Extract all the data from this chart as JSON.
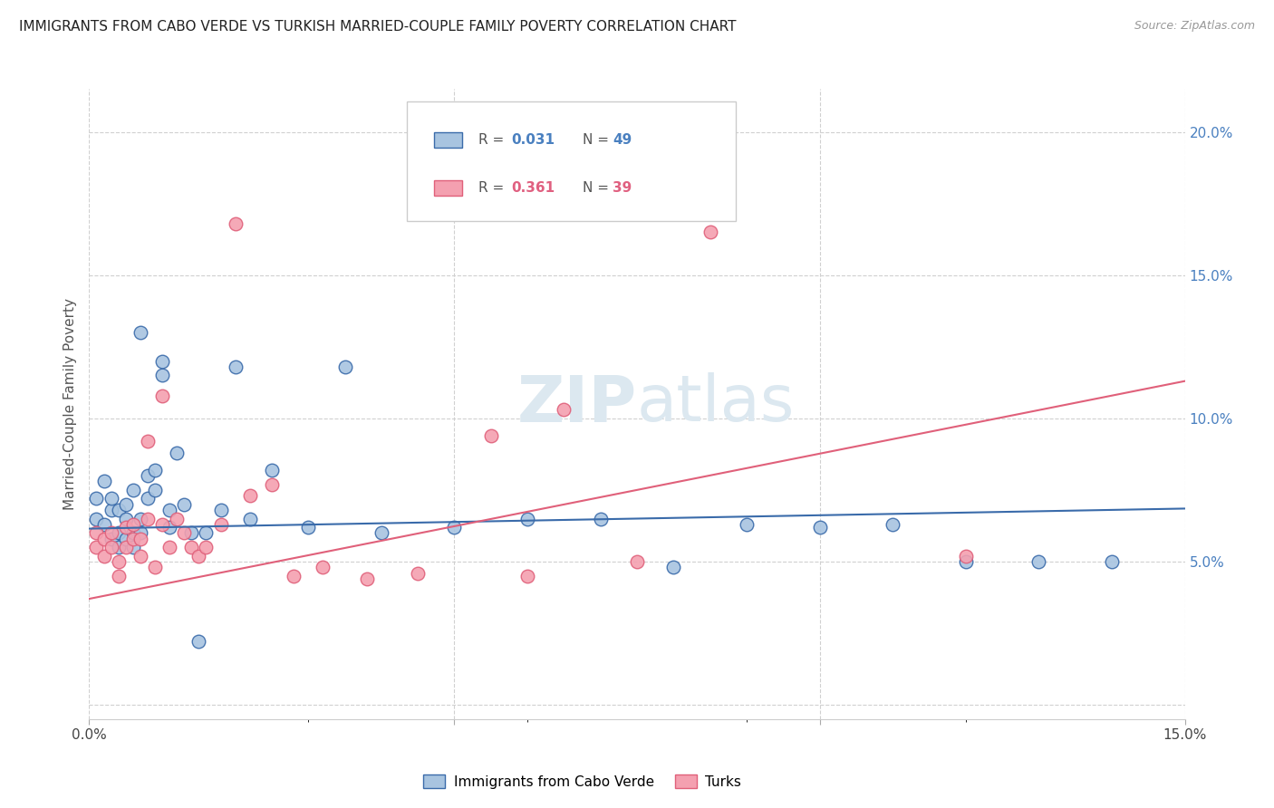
{
  "title": "IMMIGRANTS FROM CABO VERDE VS TURKISH MARRIED-COUPLE FAMILY POVERTY CORRELATION CHART",
  "source": "Source: ZipAtlas.com",
  "ylabel": "Married-Couple Family Poverty",
  "xlim": [
    0.0,
    0.15
  ],
  "ylim": [
    -0.005,
    0.215
  ],
  "color_blue": "#a8c4e0",
  "color_pink": "#f4a0b0",
  "line_color_blue": "#3a6baa",
  "line_color_pink": "#e0607a",
  "legend_text_color": "#555555",
  "legend_text_blue": "#4a80c0",
  "legend_text_pink": "#e06080",
  "right_axis_color": "#4a80c0",
  "cabo_verde_x": [
    0.001,
    0.001,
    0.002,
    0.002,
    0.003,
    0.003,
    0.003,
    0.004,
    0.004,
    0.004,
    0.005,
    0.005,
    0.005,
    0.006,
    0.006,
    0.006,
    0.007,
    0.007,
    0.007,
    0.008,
    0.008,
    0.009,
    0.009,
    0.01,
    0.01,
    0.011,
    0.011,
    0.012,
    0.013,
    0.014,
    0.015,
    0.016,
    0.018,
    0.02,
    0.022,
    0.025,
    0.03,
    0.035,
    0.04,
    0.05,
    0.06,
    0.07,
    0.08,
    0.09,
    0.1,
    0.11,
    0.12,
    0.13,
    0.14
  ],
  "cabo_verde_y": [
    0.065,
    0.072,
    0.078,
    0.063,
    0.068,
    0.058,
    0.072,
    0.06,
    0.055,
    0.068,
    0.07,
    0.065,
    0.058,
    0.075,
    0.06,
    0.055,
    0.13,
    0.065,
    0.06,
    0.08,
    0.072,
    0.082,
    0.075,
    0.115,
    0.12,
    0.068,
    0.062,
    0.088,
    0.07,
    0.06,
    0.022,
    0.06,
    0.068,
    0.118,
    0.065,
    0.082,
    0.062,
    0.118,
    0.06,
    0.062,
    0.065,
    0.065,
    0.048,
    0.063,
    0.062,
    0.063,
    0.05,
    0.05,
    0.05
  ],
  "turks_x": [
    0.001,
    0.001,
    0.002,
    0.002,
    0.003,
    0.003,
    0.004,
    0.004,
    0.005,
    0.005,
    0.006,
    0.006,
    0.007,
    0.007,
    0.008,
    0.008,
    0.009,
    0.01,
    0.01,
    0.011,
    0.012,
    0.013,
    0.014,
    0.015,
    0.016,
    0.018,
    0.02,
    0.022,
    0.025,
    0.028,
    0.032,
    0.038,
    0.045,
    0.055,
    0.06,
    0.065,
    0.075,
    0.085,
    0.12
  ],
  "turks_y": [
    0.06,
    0.055,
    0.058,
    0.052,
    0.06,
    0.055,
    0.05,
    0.045,
    0.062,
    0.055,
    0.063,
    0.058,
    0.058,
    0.052,
    0.092,
    0.065,
    0.048,
    0.108,
    0.063,
    0.055,
    0.065,
    0.06,
    0.055,
    0.052,
    0.055,
    0.063,
    0.168,
    0.073,
    0.077,
    0.045,
    0.048,
    0.044,
    0.046,
    0.094,
    0.045,
    0.103,
    0.05,
    0.165,
    0.052
  ],
  "cabo_verde_line": [
    0.0,
    0.15,
    0.0615,
    0.0685
  ],
  "turks_line": [
    0.0,
    0.15,
    0.037,
    0.113
  ],
  "background_color": "#ffffff",
  "grid_color": "#d0d0d0",
  "watermark_color": "#dce8f0",
  "yticks_right": [
    0.05,
    0.1,
    0.15,
    0.2
  ],
  "ytick_right_labels": [
    "5.0%",
    "10.0%",
    "15.0%",
    "20.0%"
  ]
}
